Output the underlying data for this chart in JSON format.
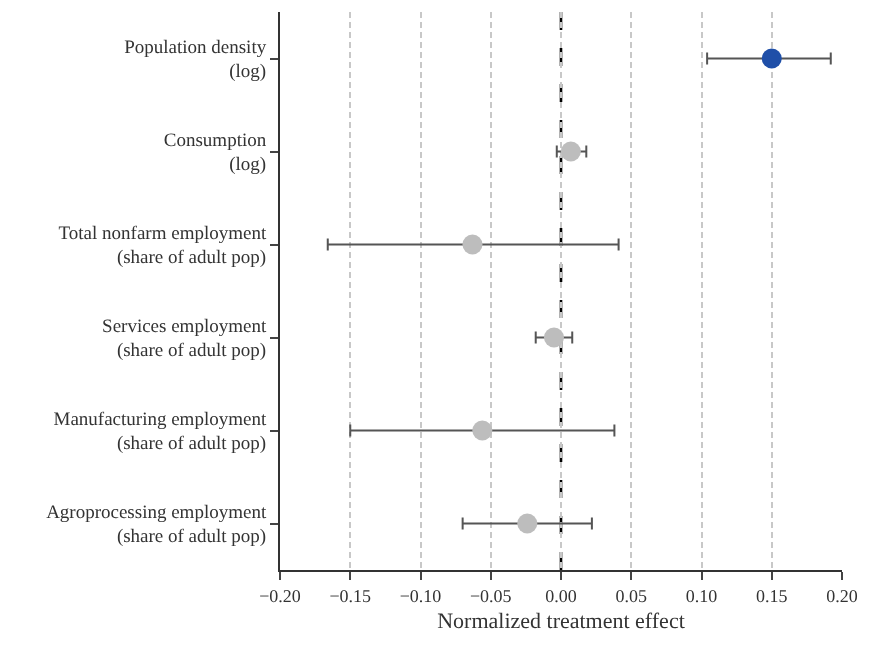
{
  "chart_data": {
    "type": "scatter",
    "orientation": "horizontal",
    "xlabel": "Normalized treatment effect",
    "categories": [
      "Population density\n(log)",
      "Consumption\n(log)",
      "Total nonfarm employment\n(share of adult pop)",
      "Services employment\n(share of adult pop)",
      "Manufacturing employment\n(share of adult pop)",
      "Agroprocessing employment\n(share of adult pop)"
    ],
    "values": [
      0.15,
      0.007,
      -0.063,
      -0.005,
      -0.056,
      -0.024
    ],
    "errors": [
      [
        0.104,
        0.192
      ],
      [
        -0.003,
        0.018
      ],
      [
        -0.166,
        0.041
      ],
      [
        -0.018,
        0.008
      ],
      [
        -0.15,
        0.038
      ],
      [
        -0.07,
        0.022
      ]
    ],
    "colors": [
      "#1f4fa8",
      "#bdbdbd",
      "#bdbdbd",
      "#bdbdbd",
      "#bdbdbd",
      "#bdbdbd"
    ],
    "xlim": [
      -0.2,
      0.2
    ],
    "xticks": [
      {
        "value": -0.2,
        "label": "−0.20"
      },
      {
        "value": -0.15,
        "label": "−0.15"
      },
      {
        "value": -0.1,
        "label": "−0.10"
      },
      {
        "value": -0.05,
        "label": "−0.05"
      },
      {
        "value": 0,
        "label": "0.00"
      },
      {
        "value": 0.05,
        "label": "0.05"
      },
      {
        "value": 0.1,
        "label": "0.10"
      },
      {
        "value": 0.15,
        "label": "0.15"
      },
      {
        "value": 0.2,
        "label": "0.20"
      }
    ],
    "grid": "x",
    "marker": "circle",
    "ref_lines": [
      {
        "axis": "x",
        "value": 0,
        "color": "#000000",
        "line_style": "dashed"
      }
    ]
  }
}
